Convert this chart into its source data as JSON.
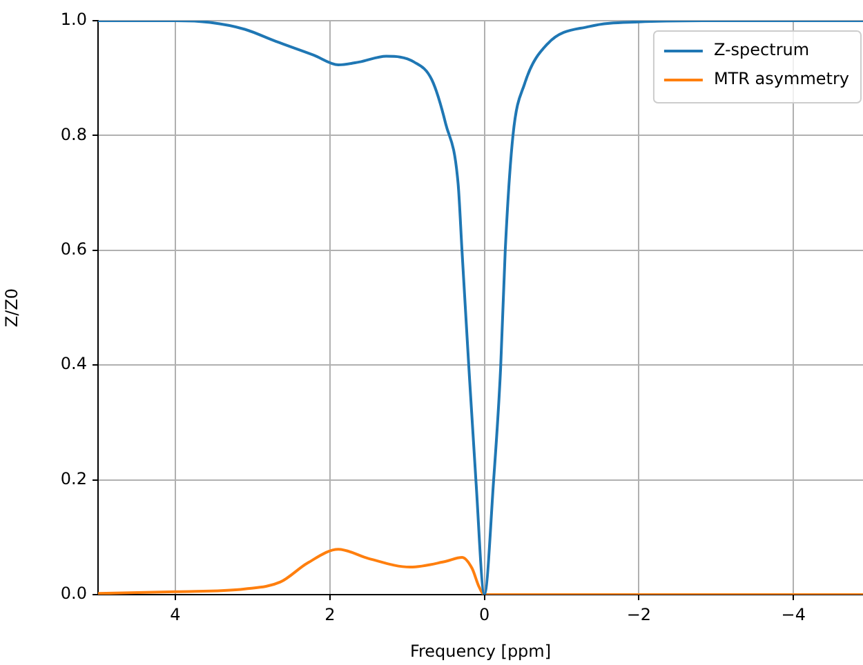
{
  "chart_data": {
    "type": "line",
    "xlabel": "Frequency [ppm]",
    "ylabel": "Z/Z0",
    "xlim": [
      5,
      -4.9
    ],
    "ylim": [
      0,
      1
    ],
    "xticks": [
      4,
      2,
      0,
      {
        "value": -2,
        "label": "−2"
      },
      {
        "value": -4,
        "label": "−4"
      }
    ],
    "yticks": [
      {
        "value": 0,
        "label": "0.0"
      },
      {
        "value": 0.2,
        "label": "0.2"
      },
      {
        "value": 0.4,
        "label": "0.4"
      },
      {
        "value": 0.6,
        "label": "0.6"
      },
      {
        "value": 0.8,
        "label": "0.8"
      },
      {
        "value": 1,
        "label": "1.0"
      }
    ],
    "grid": true,
    "legend": "top right",
    "marker": "none",
    "line_style": "solid",
    "series": [
      {
        "name": "Z-spectrum",
        "color": "#1f77b4",
        "x": [
          -4.9,
          -3,
          -2,
          -1.36,
          -0.82,
          -0.52,
          -0.37,
          -0.27,
          -0.21,
          -0.12,
          0,
          0.11,
          0.2,
          0.29,
          0.34,
          0.5,
          0.68,
          0.91,
          1.27,
          1.62,
          1.89,
          2.21,
          2.7,
          3.1,
          3.55,
          4,
          5
        ],
        "values": [
          1,
          1,
          0.998,
          0.99,
          0.96,
          0.89,
          0.8,
          0.6,
          0.394,
          0.2,
          0,
          0.2,
          0.394,
          0.6,
          0.716,
          0.82,
          0.897,
          0.928,
          0.938,
          0.928,
          0.923,
          0.94,
          0.964,
          0.985,
          0.997,
          1,
          1
        ]
      },
      {
        "name": "MTR asymmetry",
        "color": "#ff7f0e",
        "x": [
          -4.9,
          0,
          0.07,
          0.16,
          0.29,
          0.5,
          0.96,
          1.5,
          1.89,
          2.29,
          2.64,
          3.1,
          4,
          5
        ],
        "values": [
          0,
          0,
          0.014,
          0.046,
          0.065,
          0.058,
          0.048,
          0.063,
          0.079,
          0.055,
          0.022,
          0.01,
          0.005,
          0.002
        ]
      }
    ]
  }
}
